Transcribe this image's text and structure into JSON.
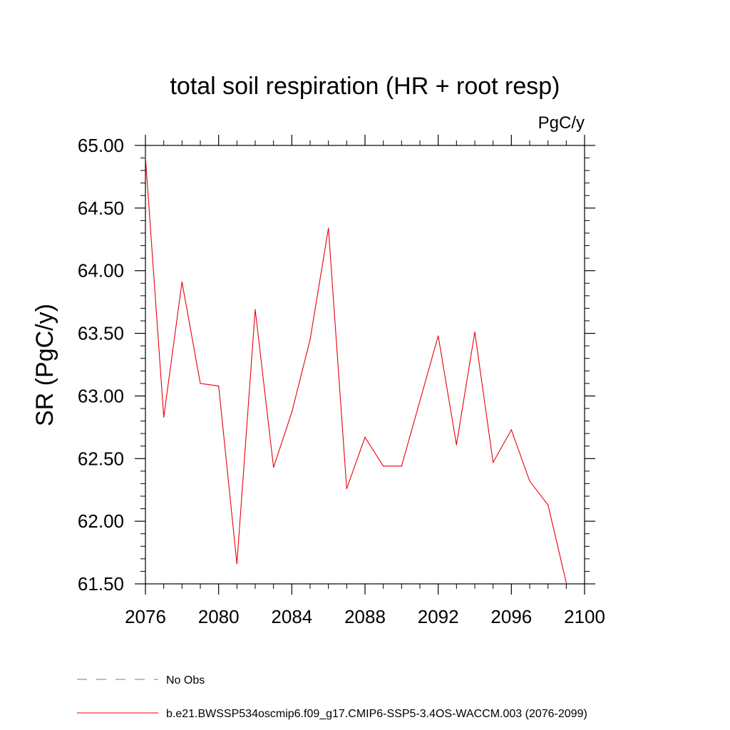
{
  "chart_data": {
    "type": "line",
    "title": "total soil respiration (HR + root resp)",
    "units": "PgC/y",
    "ylabel": "SR  (PgC/y)",
    "xlim": [
      2076,
      2100
    ],
    "ylim": [
      61.5,
      65.0
    ],
    "xticks": [
      2076,
      2080,
      2084,
      2088,
      2092,
      2096,
      2100
    ],
    "xtick_labels": [
      "2076",
      "2080",
      "2084",
      "2088",
      "2092",
      "2096",
      "2100"
    ],
    "yticks": [
      61.5,
      62.0,
      62.5,
      63.0,
      63.5,
      64.0,
      64.5,
      65.0
    ],
    "ytick_labels": [
      "61.50",
      "62.00",
      "62.50",
      "63.00",
      "63.50",
      "64.00",
      "64.50",
      "65.00"
    ],
    "grid": false,
    "legend_position": "bottom-left",
    "legend": [
      {
        "label": "No Obs",
        "color": "#7a70b8",
        "dash": "dashed"
      },
      {
        "label": "b.e21.BWSSP534oscmip6.f09_g17.CMIP6-SSP5-3.4OS-WACCM.003 (2076-2099)",
        "color": "#e8000b",
        "dash": "solid"
      }
    ],
    "series": [
      {
        "name": "b.e21.BWSSP534oscmip6.f09_g17.CMIP6-SSP5-3.4OS-WACCM.003 (2076-2099)",
        "color": "#e8000b",
        "x": [
          2076,
          2077,
          2078,
          2079,
          2080,
          2081,
          2082,
          2083,
          2084,
          2085,
          2086,
          2087,
          2088,
          2089,
          2090,
          2091,
          2092,
          2093,
          2094,
          2095,
          2096,
          2097,
          2098,
          2099
        ],
        "y": [
          64.91,
          62.83,
          63.91,
          63.1,
          63.08,
          61.66,
          63.69,
          62.43,
          62.87,
          63.45,
          64.34,
          62.26,
          62.67,
          62.44,
          62.44,
          62.96,
          63.48,
          62.61,
          63.51,
          62.47,
          62.73,
          62.32,
          62.13,
          61.51
        ]
      }
    ]
  }
}
